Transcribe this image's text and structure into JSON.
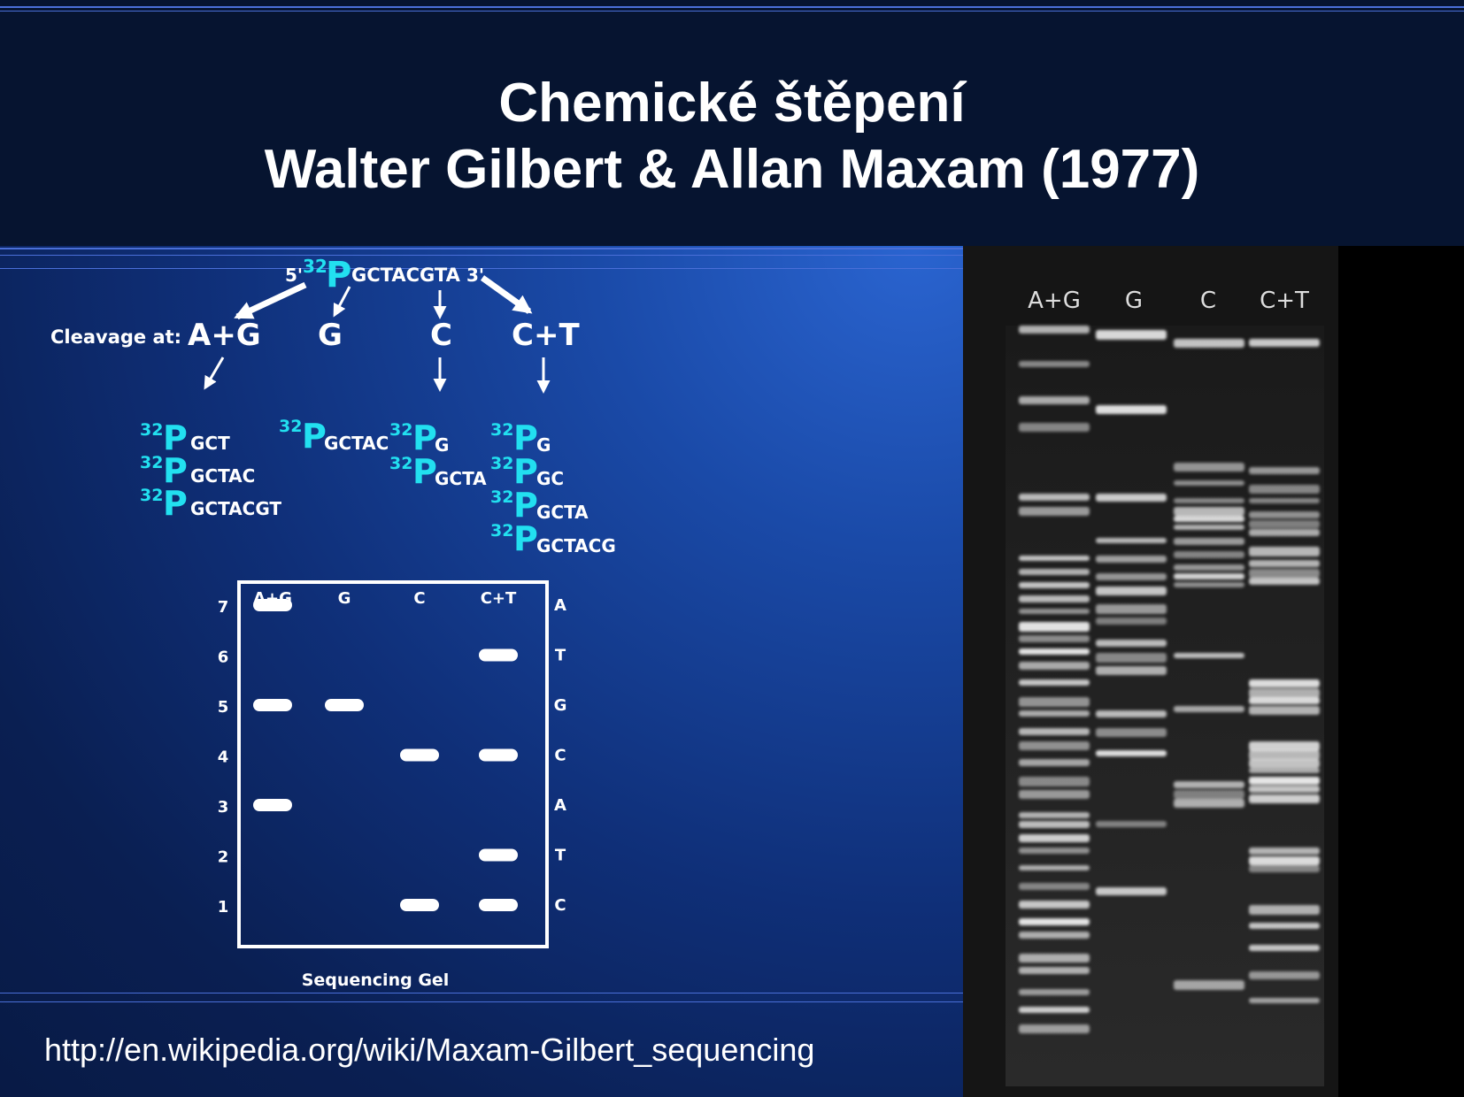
{
  "slide": {
    "title_line1": "Chemické štěpení",
    "title_line2": "Walter Gilbert & Allan Maxam (1977)",
    "source_url": "http://en.wikipedia.org/wiki/Maxam-Gilbert_sequencing"
  },
  "diagram": {
    "five_prime": "5'",
    "isotope": "32",
    "phosphorus": "P",
    "sequence": "GCTACGTA",
    "three_prime": "3'",
    "cleavage_label": "Cleavage at:",
    "cleavage_sites": [
      "A+G",
      "G",
      "C",
      "C+T"
    ],
    "fragments": {
      "ag": [
        "GCT",
        "GCTAC",
        "GCTACGT"
      ],
      "g": [
        "GCTAC"
      ],
      "c": [
        "G",
        "GCTA"
      ],
      "ct": [
        "G",
        "GC",
        "GCTA",
        "GCTACG"
      ]
    },
    "gel": {
      "caption": "Sequencing Gel",
      "lanes": [
        "A+G",
        "G",
        "C",
        "C+T"
      ],
      "positions": [
        "7",
        "6",
        "5",
        "4",
        "3",
        "2",
        "1"
      ],
      "read_bases": [
        "A",
        "T",
        "G",
        "C",
        "A",
        "T",
        "C"
      ],
      "bands": {
        "A+G": [
          7,
          5,
          3
        ],
        "G": [
          5
        ],
        "C": [
          4,
          1
        ],
        "C+T": [
          6,
          4,
          2,
          1
        ]
      }
    }
  },
  "photo": {
    "lane_labels": [
      "A+G",
      "G",
      "C",
      "C+T"
    ]
  },
  "colors": {
    "background": "#06122c",
    "accent_line": "#4a6fd8",
    "isotope": "#22e0f0",
    "text": "#ffffff"
  }
}
